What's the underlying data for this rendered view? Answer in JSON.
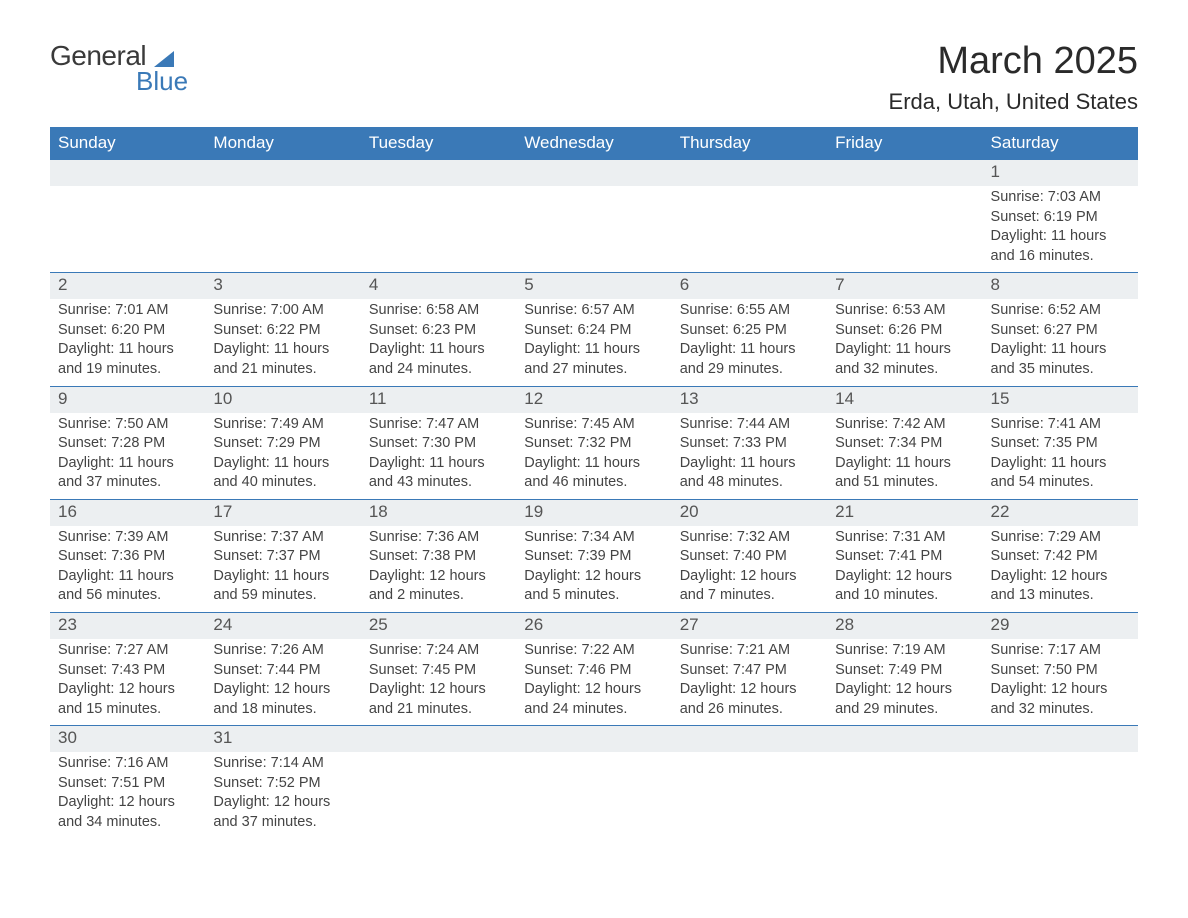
{
  "logo": {
    "text1": "General",
    "text2": "Blue"
  },
  "title": {
    "month": "March 2025",
    "location": "Erda, Utah, United States"
  },
  "weekdays": [
    "Sunday",
    "Monday",
    "Tuesday",
    "Wednesday",
    "Thursday",
    "Friday",
    "Saturday"
  ],
  "colors": {
    "header_bg": "#3a79b7",
    "header_text": "#ffffff",
    "daynum_bg": "#eceff1",
    "row_border": "#3a79b7",
    "body_text": "#444444",
    "title_text": "#2a2a2a",
    "page_bg": "#ffffff"
  },
  "typography": {
    "title_fontsize": 38,
    "location_fontsize": 22,
    "weekday_fontsize": 17,
    "daynum_fontsize": 17,
    "detail_fontsize": 14.5,
    "font_family": "Arial"
  },
  "weeks": [
    [
      null,
      null,
      null,
      null,
      null,
      null,
      {
        "n": "1",
        "sr": "Sunrise: 7:03 AM",
        "ss": "Sunset: 6:19 PM",
        "dl": "Daylight: 11 hours and 16 minutes."
      }
    ],
    [
      {
        "n": "2",
        "sr": "Sunrise: 7:01 AM",
        "ss": "Sunset: 6:20 PM",
        "dl": "Daylight: 11 hours and 19 minutes."
      },
      {
        "n": "3",
        "sr": "Sunrise: 7:00 AM",
        "ss": "Sunset: 6:22 PM",
        "dl": "Daylight: 11 hours and 21 minutes."
      },
      {
        "n": "4",
        "sr": "Sunrise: 6:58 AM",
        "ss": "Sunset: 6:23 PM",
        "dl": "Daylight: 11 hours and 24 minutes."
      },
      {
        "n": "5",
        "sr": "Sunrise: 6:57 AM",
        "ss": "Sunset: 6:24 PM",
        "dl": "Daylight: 11 hours and 27 minutes."
      },
      {
        "n": "6",
        "sr": "Sunrise: 6:55 AM",
        "ss": "Sunset: 6:25 PM",
        "dl": "Daylight: 11 hours and 29 minutes."
      },
      {
        "n": "7",
        "sr": "Sunrise: 6:53 AM",
        "ss": "Sunset: 6:26 PM",
        "dl": "Daylight: 11 hours and 32 minutes."
      },
      {
        "n": "8",
        "sr": "Sunrise: 6:52 AM",
        "ss": "Sunset: 6:27 PM",
        "dl": "Daylight: 11 hours and 35 minutes."
      }
    ],
    [
      {
        "n": "9",
        "sr": "Sunrise: 7:50 AM",
        "ss": "Sunset: 7:28 PM",
        "dl": "Daylight: 11 hours and 37 minutes."
      },
      {
        "n": "10",
        "sr": "Sunrise: 7:49 AM",
        "ss": "Sunset: 7:29 PM",
        "dl": "Daylight: 11 hours and 40 minutes."
      },
      {
        "n": "11",
        "sr": "Sunrise: 7:47 AM",
        "ss": "Sunset: 7:30 PM",
        "dl": "Daylight: 11 hours and 43 minutes."
      },
      {
        "n": "12",
        "sr": "Sunrise: 7:45 AM",
        "ss": "Sunset: 7:32 PM",
        "dl": "Daylight: 11 hours and 46 minutes."
      },
      {
        "n": "13",
        "sr": "Sunrise: 7:44 AM",
        "ss": "Sunset: 7:33 PM",
        "dl": "Daylight: 11 hours and 48 minutes."
      },
      {
        "n": "14",
        "sr": "Sunrise: 7:42 AM",
        "ss": "Sunset: 7:34 PM",
        "dl": "Daylight: 11 hours and 51 minutes."
      },
      {
        "n": "15",
        "sr": "Sunrise: 7:41 AM",
        "ss": "Sunset: 7:35 PM",
        "dl": "Daylight: 11 hours and 54 minutes."
      }
    ],
    [
      {
        "n": "16",
        "sr": "Sunrise: 7:39 AM",
        "ss": "Sunset: 7:36 PM",
        "dl": "Daylight: 11 hours and 56 minutes."
      },
      {
        "n": "17",
        "sr": "Sunrise: 7:37 AM",
        "ss": "Sunset: 7:37 PM",
        "dl": "Daylight: 11 hours and 59 minutes."
      },
      {
        "n": "18",
        "sr": "Sunrise: 7:36 AM",
        "ss": "Sunset: 7:38 PM",
        "dl": "Daylight: 12 hours and 2 minutes."
      },
      {
        "n": "19",
        "sr": "Sunrise: 7:34 AM",
        "ss": "Sunset: 7:39 PM",
        "dl": "Daylight: 12 hours and 5 minutes."
      },
      {
        "n": "20",
        "sr": "Sunrise: 7:32 AM",
        "ss": "Sunset: 7:40 PM",
        "dl": "Daylight: 12 hours and 7 minutes."
      },
      {
        "n": "21",
        "sr": "Sunrise: 7:31 AM",
        "ss": "Sunset: 7:41 PM",
        "dl": "Daylight: 12 hours and 10 minutes."
      },
      {
        "n": "22",
        "sr": "Sunrise: 7:29 AM",
        "ss": "Sunset: 7:42 PM",
        "dl": "Daylight: 12 hours and 13 minutes."
      }
    ],
    [
      {
        "n": "23",
        "sr": "Sunrise: 7:27 AM",
        "ss": "Sunset: 7:43 PM",
        "dl": "Daylight: 12 hours and 15 minutes."
      },
      {
        "n": "24",
        "sr": "Sunrise: 7:26 AM",
        "ss": "Sunset: 7:44 PM",
        "dl": "Daylight: 12 hours and 18 minutes."
      },
      {
        "n": "25",
        "sr": "Sunrise: 7:24 AM",
        "ss": "Sunset: 7:45 PM",
        "dl": "Daylight: 12 hours and 21 minutes."
      },
      {
        "n": "26",
        "sr": "Sunrise: 7:22 AM",
        "ss": "Sunset: 7:46 PM",
        "dl": "Daylight: 12 hours and 24 minutes."
      },
      {
        "n": "27",
        "sr": "Sunrise: 7:21 AM",
        "ss": "Sunset: 7:47 PM",
        "dl": "Daylight: 12 hours and 26 minutes."
      },
      {
        "n": "28",
        "sr": "Sunrise: 7:19 AM",
        "ss": "Sunset: 7:49 PM",
        "dl": "Daylight: 12 hours and 29 minutes."
      },
      {
        "n": "29",
        "sr": "Sunrise: 7:17 AM",
        "ss": "Sunset: 7:50 PM",
        "dl": "Daylight: 12 hours and 32 minutes."
      }
    ],
    [
      {
        "n": "30",
        "sr": "Sunrise: 7:16 AM",
        "ss": "Sunset: 7:51 PM",
        "dl": "Daylight: 12 hours and 34 minutes."
      },
      {
        "n": "31",
        "sr": "Sunrise: 7:14 AM",
        "ss": "Sunset: 7:52 PM",
        "dl": "Daylight: 12 hours and 37 minutes."
      },
      null,
      null,
      null,
      null,
      null
    ]
  ]
}
